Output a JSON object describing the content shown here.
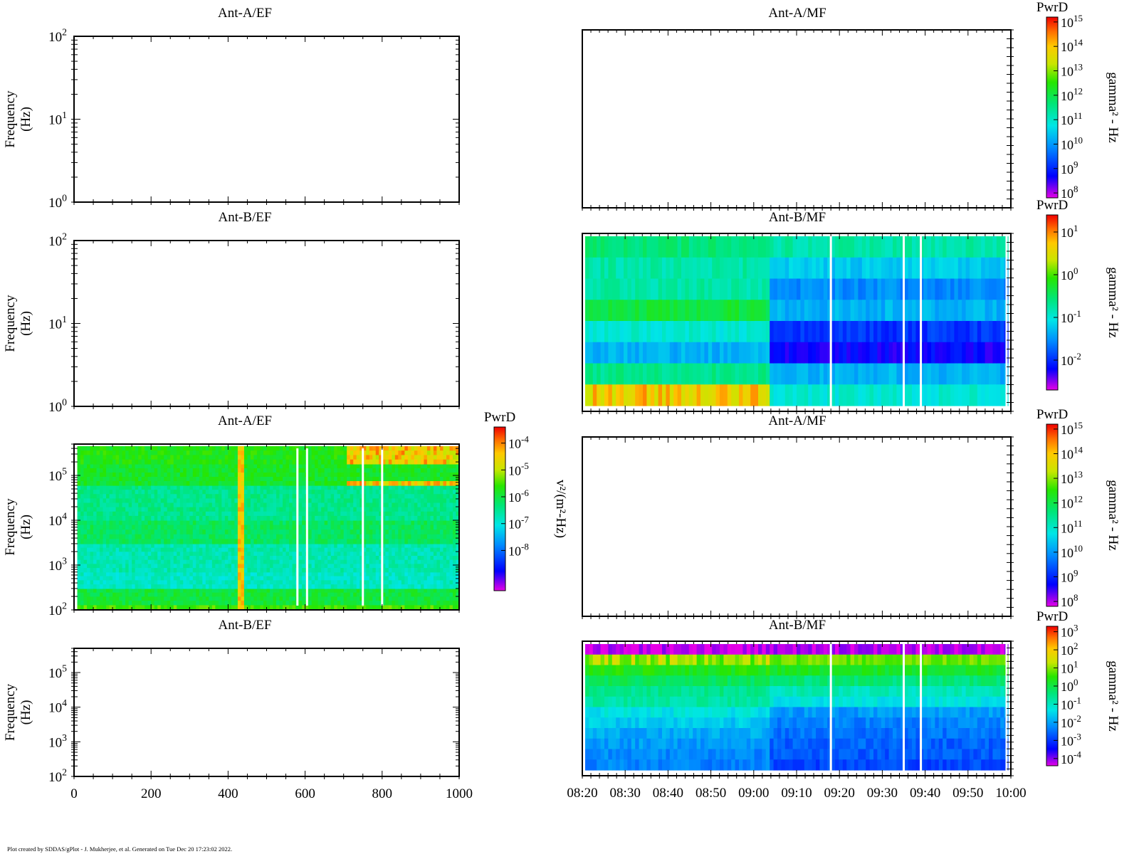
{
  "footer": {
    "credit": "Plot created by SDDAS/gPlot - J. Mukherjee, et al.  Generated on Tue Dec 20 17:23:02 2022."
  },
  "colorbar_unit_ef": "v²/(m²-Hz)",
  "colorbar_unit_mf": "gamma² - Hz",
  "colorbar_title": "PwrD",
  "chart_data": [
    {
      "id": "ef-low-a",
      "type": "heatmap",
      "title": "Ant-A/EF",
      "ylabel": "Frequency (Hz)",
      "yscale": "log",
      "ytick_exponents": [
        0,
        1,
        2
      ],
      "ylim": [
        1,
        100
      ],
      "xlim": [
        0,
        1000
      ],
      "data_present": false
    },
    {
      "id": "ef-low-b",
      "type": "heatmap",
      "title": "Ant-B/EF",
      "ylabel": "Frequency (Hz)",
      "yscale": "log",
      "ytick_exponents": [
        0,
        1,
        2
      ],
      "ylim": [
        1,
        100
      ],
      "xlim": [
        0,
        1000
      ],
      "data_present": false
    },
    {
      "id": "ef-high-a",
      "type": "heatmap",
      "title": "Ant-A/EF",
      "ylabel": "Frequency (Hz)",
      "yscale": "log",
      "ytick_exponents": [
        2,
        3,
        4,
        5
      ],
      "ylim": [
        100,
        500000
      ],
      "xlim": [
        0,
        1000
      ],
      "data_present": true,
      "colorbar": {
        "title": "PwrD",
        "unit": "v²/(m²-Hz)",
        "tick_exponents": [
          -8,
          -7,
          -6,
          -5,
          -4
        ],
        "range_exp": [
          -9.5,
          -3.4
        ]
      },
      "freq_bands_hz": [
        {
          "f": [
            100,
            130
          ],
          "level": 0.66
        },
        {
          "f": [
            130,
            300
          ],
          "level": 0.58
        },
        {
          "f": [
            300,
            700
          ],
          "level": 0.44
        },
        {
          "f": [
            700,
            3000
          ],
          "level": 0.46
        },
        {
          "f": [
            3000,
            10000
          ],
          "level": 0.55
        },
        {
          "f": [
            10000,
            60000
          ],
          "level": 0.5
        },
        {
          "f": [
            60000,
            180000
          ],
          "level": 0.6
        },
        {
          "f": [
            180000,
            450000
          ],
          "level": 0.62
        }
      ],
      "events": [
        {
          "x": 430,
          "desc": "broadband enhancement"
        },
        {
          "x_range": [
            700,
            1000
          ],
          "f_range": [
            150000,
            450000
          ],
          "level": 0.85
        }
      ],
      "gaps_x": [
        580,
        605,
        750,
        800
      ]
    },
    {
      "id": "ef-high-b",
      "type": "heatmap",
      "title": "Ant-B/EF",
      "ylabel": "Frequency (Hz)",
      "yscale": "log",
      "ytick_exponents": [
        2,
        3,
        4,
        5
      ],
      "ylim": [
        100,
        500000
      ],
      "xlim": [
        0,
        1000
      ],
      "data_present": false,
      "xticks": [
        0,
        200,
        400,
        600,
        800,
        1000
      ]
    },
    {
      "id": "mf-1-a",
      "type": "heatmap",
      "title": "Ant-A/MF",
      "data_present": false,
      "colorbar": {
        "title": "PwrD",
        "unit": "gamma² - Hz",
        "tick_exponents": [
          8,
          9,
          10,
          11,
          12,
          13,
          14,
          15
        ],
        "range_exp": [
          7.8,
          15.2
        ]
      }
    },
    {
      "id": "mf-1-b",
      "type": "heatmap",
      "title": "Ant-B/MF",
      "data_present": true,
      "colorbar": {
        "title": "PwrD",
        "unit": "gamma² - Hz",
        "tick_exponents": [
          -2,
          -1,
          0,
          1
        ],
        "range_exp": [
          -2.7,
          1.4
        ]
      },
      "rows_before_0903": [
        0.52,
        0.47,
        0.47,
        0.58,
        0.42,
        0.33,
        0.5,
        0.82
      ],
      "rows_after_0903": [
        0.47,
        0.36,
        0.28,
        0.33,
        0.18,
        0.12,
        0.33,
        0.42
      ],
      "gaps_time": [
        "09:18",
        "09:35",
        "09:39",
        "09:59"
      ]
    },
    {
      "id": "mf-2-a",
      "type": "heatmap",
      "title": "Ant-A/MF",
      "data_present": false,
      "colorbar": {
        "title": "PwrD",
        "unit": "gamma² - Hz",
        "tick_exponents": [
          8,
          9,
          10,
          11,
          12,
          13,
          14,
          15
        ],
        "range_exp": [
          7.8,
          15.2
        ]
      }
    },
    {
      "id": "mf-2-b",
      "type": "heatmap",
      "title": "Ant-B/MF",
      "data_present": true,
      "xticks": [
        "08:20",
        "08:30",
        "08:40",
        "08:50",
        "09:00",
        "09:10",
        "09:20",
        "09:30",
        "09:40",
        "09:50",
        "10:00"
      ],
      "colorbar": {
        "title": "PwrD",
        "unit": "gamma² - Hz",
        "tick_exponents": [
          -4,
          -3,
          -2,
          -1,
          0,
          1,
          2,
          3
        ],
        "range_exp": [
          -4.4,
          3.3
        ]
      },
      "rows_before_0903": [
        0.02,
        0.72,
        0.62,
        0.55,
        0.5,
        0.47,
        0.4,
        0.36,
        0.32,
        0.3,
        0.28,
        0.27
      ],
      "rows_after_0903": [
        0.02,
        0.68,
        0.6,
        0.52,
        0.45,
        0.4,
        0.3,
        0.27,
        0.25,
        0.23,
        0.22,
        0.2
      ],
      "gaps_time": [
        "09:18",
        "09:35",
        "09:39",
        "09:59"
      ]
    }
  ]
}
